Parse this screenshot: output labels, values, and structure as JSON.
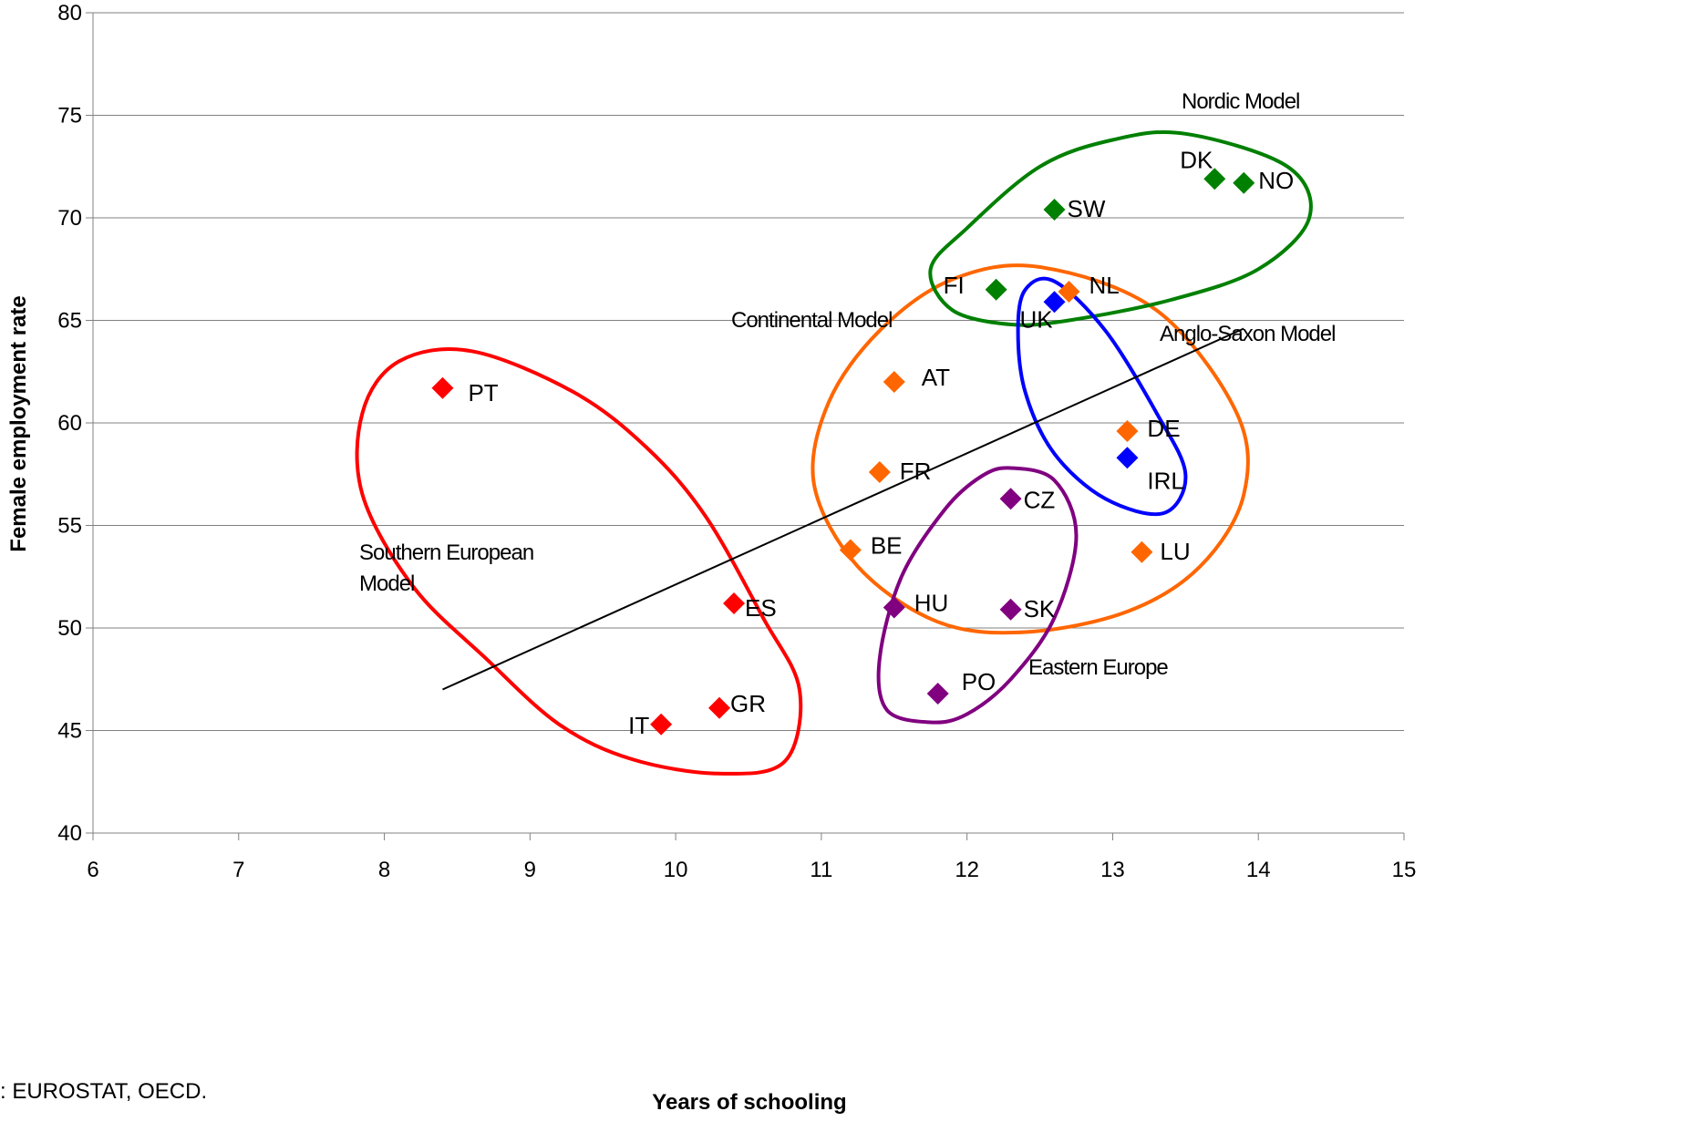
{
  "source_note": ": EUROSTAT, OECD.",
  "chart_data": {
    "type": "scatter",
    "title": "",
    "xlabel": "Years of schooling",
    "ylabel": "Female employment rate",
    "xlim": [
      6,
      15
    ],
    "ylim": [
      40,
      80
    ],
    "xticks": [
      6,
      7,
      8,
      9,
      10,
      11,
      12,
      13,
      14,
      15
    ],
    "yticks": [
      40,
      45,
      50,
      55,
      60,
      65,
      70,
      75,
      80
    ],
    "grid": "horizontal",
    "marker": "diamond",
    "colors": {
      "southern": "#ff0000",
      "continental": "#ff6600",
      "nordic": "#008000",
      "anglo": "#0000ff",
      "eastern": "#800080",
      "trend": "#000000"
    },
    "points": [
      {
        "label": "PT",
        "x": 8.4,
        "y": 61.7,
        "group": "southern"
      },
      {
        "label": "ES",
        "x": 10.4,
        "y": 51.2,
        "group": "southern"
      },
      {
        "label": "GR",
        "x": 10.3,
        "y": 46.1,
        "group": "southern"
      },
      {
        "label": "IT",
        "x": 9.9,
        "y": 45.3,
        "group": "southern"
      },
      {
        "label": "AT",
        "x": 11.5,
        "y": 62.0,
        "group": "continental"
      },
      {
        "label": "FR",
        "x": 11.4,
        "y": 57.6,
        "group": "continental"
      },
      {
        "label": "BE",
        "x": 11.2,
        "y": 53.8,
        "group": "continental"
      },
      {
        "label": "NL",
        "x": 12.7,
        "y": 66.4,
        "group": "continental"
      },
      {
        "label": "DE",
        "x": 13.1,
        "y": 59.6,
        "group": "continental"
      },
      {
        "label": "LU",
        "x": 13.2,
        "y": 53.7,
        "group": "continental"
      },
      {
        "label": "DK",
        "x": 13.7,
        "y": 71.9,
        "group": "nordic"
      },
      {
        "label": "NO",
        "x": 13.9,
        "y": 71.7,
        "group": "nordic"
      },
      {
        "label": "SW",
        "x": 12.6,
        "y": 70.4,
        "group": "nordic"
      },
      {
        "label": "FI",
        "x": 12.2,
        "y": 66.5,
        "group": "nordic"
      },
      {
        "label": "UK",
        "x": 12.6,
        "y": 65.9,
        "group": "anglo"
      },
      {
        "label": "IRL",
        "x": 13.1,
        "y": 58.3,
        "group": "anglo"
      },
      {
        "label": "CZ",
        "x": 12.3,
        "y": 56.3,
        "group": "eastern"
      },
      {
        "label": "HU",
        "x": 11.5,
        "y": 51.0,
        "group": "eastern"
      },
      {
        "label": "SK",
        "x": 12.3,
        "y": 50.9,
        "group": "eastern"
      },
      {
        "label": "PO",
        "x": 11.8,
        "y": 46.8,
        "group": "eastern"
      }
    ],
    "trendline": {
      "x": [
        8.4,
        13.9
      ],
      "y": [
        47.0,
        64.6
      ]
    },
    "groups": [
      {
        "id": "southern",
        "label_lines": [
          "Southern European",
          "Model"
        ],
        "outline": [
          [
            8.6,
            63.5
          ],
          [
            9.3,
            61.5
          ],
          [
            9.8,
            58.8
          ],
          [
            10.2,
            55.5
          ],
          [
            10.6,
            50.5
          ],
          [
            10.85,
            47.0
          ],
          [
            10.75,
            43.5
          ],
          [
            10.3,
            42.9
          ],
          [
            9.7,
            43.6
          ],
          [
            9.2,
            45.3
          ],
          [
            8.7,
            48.5
          ],
          [
            8.2,
            52.0
          ],
          [
            7.85,
            56.5
          ],
          [
            7.85,
            60.5
          ],
          [
            8.1,
            63.0
          ]
        ]
      },
      {
        "id": "continental",
        "label_lines": [
          "Continental Model"
        ],
        "outline": [
          [
            12.5,
            67.6
          ],
          [
            13.3,
            65.5
          ],
          [
            13.85,
            60.5
          ],
          [
            13.9,
            56.5
          ],
          [
            13.6,
            53.0
          ],
          [
            13.1,
            50.8
          ],
          [
            12.4,
            49.8
          ],
          [
            11.8,
            50.3
          ],
          [
            11.25,
            53.0
          ],
          [
            10.95,
            57.0
          ],
          [
            11.05,
            61.0
          ],
          [
            11.4,
            64.5
          ],
          [
            11.9,
            67.0
          ]
        ]
      },
      {
        "id": "nordic",
        "label_lines": [
          "Nordic Model"
        ],
        "outline": [
          [
            13.5,
            74.1
          ],
          [
            14.2,
            72.5
          ],
          [
            14.35,
            70.0
          ],
          [
            14.0,
            67.5
          ],
          [
            13.4,
            66.0
          ],
          [
            12.7,
            65.0
          ],
          [
            12.3,
            64.8
          ],
          [
            11.9,
            65.5
          ],
          [
            11.75,
            67.5
          ],
          [
            12.0,
            69.5
          ],
          [
            12.5,
            72.5
          ],
          [
            13.0,
            73.8
          ]
        ]
      },
      {
        "id": "anglo",
        "label_lines": [
          "Anglo-Saxon Model"
        ],
        "outline": [
          [
            12.6,
            66.9
          ],
          [
            12.95,
            64.5
          ],
          [
            13.3,
            60.5
          ],
          [
            13.5,
            57.5
          ],
          [
            13.35,
            55.6
          ],
          [
            12.95,
            56.3
          ],
          [
            12.6,
            58.5
          ],
          [
            12.4,
            61.5
          ],
          [
            12.35,
            64.5
          ],
          [
            12.4,
            66.5
          ]
        ]
      },
      {
        "id": "eastern",
        "label_lines": [
          "Eastern Europe"
        ],
        "outline": [
          [
            12.3,
            57.8
          ],
          [
            12.6,
            57.2
          ],
          [
            12.75,
            54.5
          ],
          [
            12.6,
            50.5
          ],
          [
            12.3,
            47.5
          ],
          [
            12.0,
            45.8
          ],
          [
            11.75,
            45.4
          ],
          [
            11.45,
            46.0
          ],
          [
            11.4,
            48.5
          ],
          [
            11.55,
            52.5
          ],
          [
            11.85,
            55.8
          ],
          [
            12.1,
            57.4
          ]
        ]
      }
    ]
  }
}
